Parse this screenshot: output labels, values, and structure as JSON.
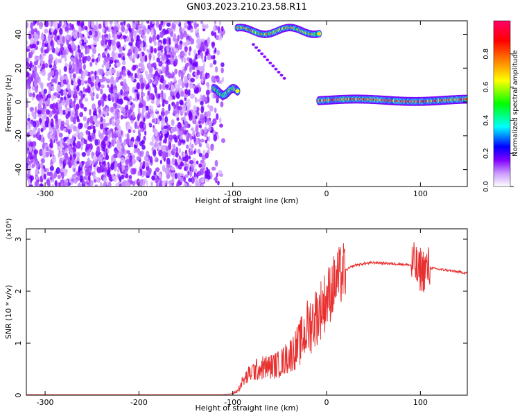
{
  "title": "GN03.2023.210.23.58.R11",
  "chart_data": [
    {
      "type": "heatmap",
      "xlabel": "Height of straight line (km)",
      "ylabel": "Frequency (Hz)",
      "xlim": [
        -320,
        150
      ],
      "ylim": [
        -50,
        48
      ],
      "xticks": [
        -300,
        -200,
        -100,
        0,
        100
      ],
      "yticks": [
        -40,
        -20,
        0,
        20,
        40
      ],
      "colorbar": {
        "label": "Normalized spectral amplitude",
        "range": [
          0,
          1
        ],
        "ticks": [
          0.0,
          0.2,
          0.4,
          0.6,
          0.8
        ],
        "colors": [
          "#ffffff",
          "#cc99ff",
          "#7f00ff",
          "#0000ff",
          "#00ffff",
          "#00ff00",
          "#ffff00",
          "#ff8000",
          "#ff0000",
          "#ff0066"
        ]
      },
      "features": [
        {
          "x_range": [
            -320,
            -110
          ],
          "y_range": [
            -50,
            48
          ],
          "amplitude": 0.15
        },
        {
          "x_range": [
            -120,
            -95
          ],
          "y_center": 6,
          "amplitude": 0.6
        },
        {
          "x_range": [
            -95,
            -8
          ],
          "y_center": 42,
          "amplitude": 0.7
        },
        {
          "x_range": [
            -78,
            -45
          ],
          "y_from": 34,
          "y_to": 14,
          "amplitude": 0.15
        },
        {
          "x_range": [
            -8,
            150
          ],
          "y_center": 1,
          "amplitude": 0.85
        }
      ]
    },
    {
      "type": "line",
      "xlabel": "Height of straight line (km)",
      "ylabel": "SNR (10 * v/v)",
      "y_multiplier": "(x10⁴)",
      "xlim": [
        -320,
        150
      ],
      "ylim": [
        0,
        3.2
      ],
      "xticks": [
        -300,
        -200,
        -100,
        0,
        100
      ],
      "yticks": [
        0,
        1,
        2,
        3
      ],
      "series": [
        {
          "color": "#e83030",
          "x": [
            -320,
            -200,
            -110,
            -100,
            -95,
            -90,
            -80,
            -70,
            -60,
            -50,
            -40,
            -30,
            -20,
            -10,
            0,
            10,
            20,
            30,
            40,
            50,
            60,
            70,
            80,
            90,
            95,
            98,
            100,
            102,
            110,
            120,
            130,
            140,
            150
          ],
          "y": [
            0.01,
            0.01,
            0.01,
            0.03,
            0.08,
            0.25,
            0.45,
            0.52,
            0.55,
            0.6,
            0.75,
            0.95,
            1.3,
            1.55,
            1.85,
            2.2,
            2.4,
            2.5,
            2.53,
            2.55,
            2.54,
            2.53,
            2.52,
            2.5,
            2.5,
            2.3,
            2.45,
            2.4,
            2.45,
            2.42,
            2.4,
            2.37,
            2.35
          ]
        }
      ]
    }
  ]
}
